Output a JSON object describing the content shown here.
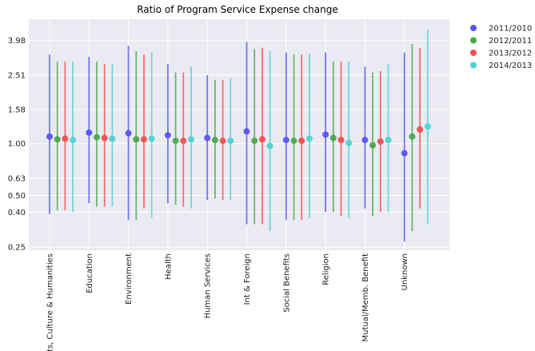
{
  "chart_data": {
    "type": "scatter",
    "title": "Ratio of Program Service Expense change",
    "xlabel": "",
    "ylabel": "",
    "yscale": "log",
    "ylim": [
      0.24,
      5.3
    ],
    "y_ticks": [
      {
        "value": 0.25,
        "label": "0.25"
      },
      {
        "value": 0.4,
        "label": "0.40"
      },
      {
        "value": 0.5,
        "label": "0.50"
      },
      {
        "value": 0.63,
        "label": "0.63"
      },
      {
        "value": 1.0,
        "label": "1.00"
      },
      {
        "value": 1.58,
        "label": "1.58"
      },
      {
        "value": 2.51,
        "label": "2.51"
      },
      {
        "value": 3.98,
        "label": "3.98"
      }
    ],
    "grid": true,
    "legend_position": "outside top-right",
    "categories": [
      "Arts, Culture & Humanities",
      "Education",
      "Environment",
      "Health",
      "Human Services",
      "Int & Foreign",
      "Social Benefits",
      "Religion",
      "Mutual/Memb. Benefit",
      "Unknown"
    ],
    "series": [
      {
        "name": "2011/2010",
        "color": "#5656f0",
        "values": [
          1.1,
          1.16,
          1.15,
          1.12,
          1.08,
          1.18,
          1.05,
          1.13,
          1.05,
          0.88
        ],
        "lower": [
          0.39,
          0.45,
          0.36,
          0.45,
          0.47,
          0.34,
          0.36,
          0.4,
          0.42,
          0.27
        ],
        "upper": [
          3.3,
          3.2,
          3.7,
          2.9,
          2.5,
          3.9,
          3.4,
          3.4,
          2.8,
          3.4
        ]
      },
      {
        "name": "2012/2011",
        "color": "#4aa84a",
        "values": [
          1.06,
          1.09,
          1.06,
          1.04,
          1.05,
          1.04,
          1.04,
          1.08,
          0.98,
          1.1
        ],
        "lower": [
          0.41,
          0.43,
          0.36,
          0.44,
          0.48,
          0.34,
          0.36,
          0.4,
          0.38,
          0.31
        ],
        "upper": [
          3.0,
          3.0,
          3.45,
          2.6,
          2.35,
          3.55,
          3.3,
          3.0,
          2.6,
          3.8
        ]
      },
      {
        "name": "2013/2012",
        "color": "#f05050",
        "values": [
          1.07,
          1.08,
          1.06,
          1.04,
          1.04,
          1.06,
          1.04,
          1.05,
          1.03,
          1.21
        ],
        "lower": [
          0.41,
          0.43,
          0.42,
          0.43,
          0.47,
          0.34,
          0.36,
          0.38,
          0.4,
          0.42
        ],
        "upper": [
          3.0,
          2.9,
          3.3,
          2.6,
          2.35,
          3.6,
          3.3,
          3.0,
          2.65,
          3.6
        ]
      },
      {
        "name": "2014/2013",
        "color": "#4fd2d2",
        "values": [
          1.05,
          1.07,
          1.07,
          1.06,
          1.04,
          0.97,
          1.07,
          1.01,
          1.05,
          1.26
        ],
        "lower": [
          0.4,
          0.43,
          0.37,
          0.42,
          0.47,
          0.31,
          0.37,
          0.37,
          0.4,
          0.34
        ],
        "upper": [
          3.0,
          2.9,
          3.4,
          2.8,
          2.4,
          3.45,
          3.35,
          3.0,
          2.9,
          4.6
        ]
      }
    ]
  }
}
